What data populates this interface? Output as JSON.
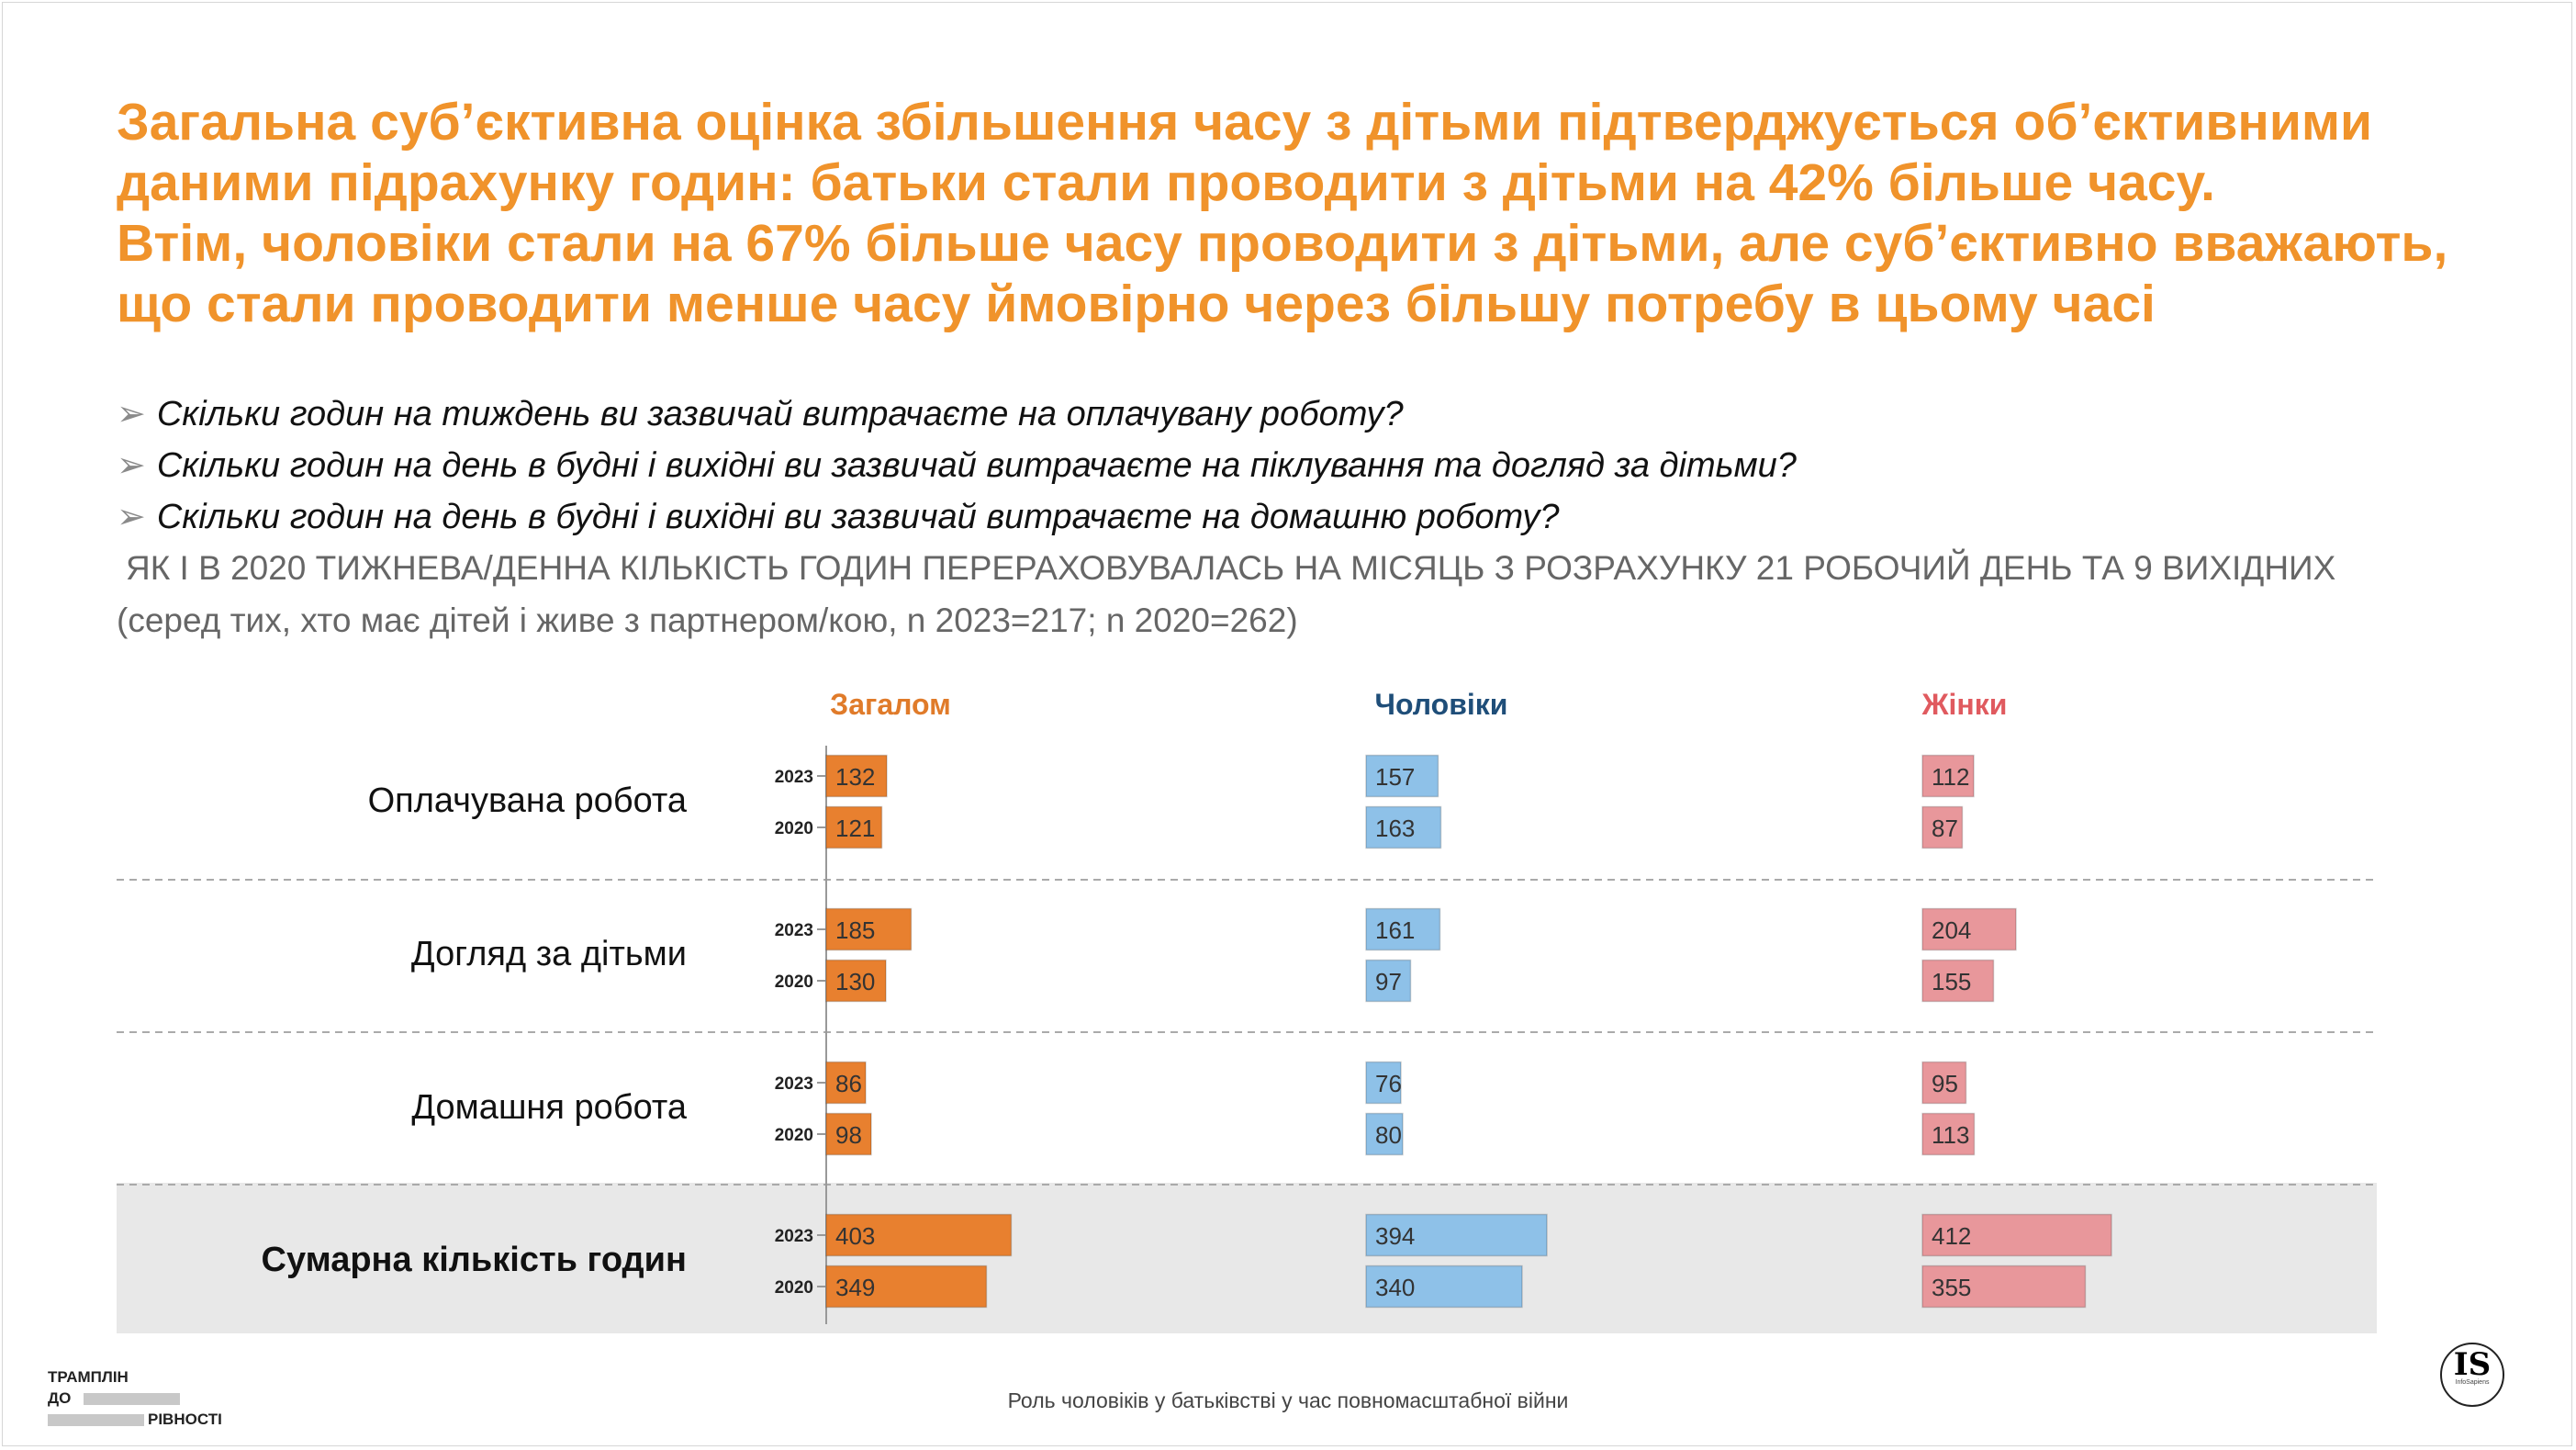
{
  "title_lines": [
    "Загальна суб’єктивна оцінка збільшення часу з дітьми підтверджується об’єктивними",
    "даними підрахунку годин: батьки стали проводити з дітьми на 42% більше часу.",
    "Втім, чоловіки стали на 67% більше часу проводити з дітьми, але суб’єктивно вважають,",
    "що стали проводити менше часу ймовірно через більшу потребу в цьому часі"
  ],
  "questions": [
    "Скільки годин на тиждень ви зазвичай витрачаєте на оплачувану роботу?",
    "Скільки годин на день в будні і вихідні ви зазвичай витрачаєте на піклування та догляд за дітьми?",
    "Скільки годин на день в будні і вихідні ви зазвичай витрачаєте на домашню роботу?"
  ],
  "note_line1": "ЯК І В 2020 ТИЖНЕВА/ДЕННА КІЛЬКІСТЬ ГОДИН ПЕРЕРАХОВУВАЛАСЬ НА МІСЯЦЬ З РОЗРАХУНКУ 21 РОБОЧИЙ ДЕНЬ ТА 9 ВИХІДНИХ",
  "note_line2": "(серед тих, хто має дітей і живе з партнером/кою, n 2023=217; n 2020=262)",
  "colors": {
    "title": "#f0932b",
    "overall": "#e8802f",
    "men": "#8ec1e8",
    "women": "#e8979b",
    "overall_header": "#e07b2a",
    "men_header": "#1f4e79",
    "women_header": "#e05a5f",
    "highlight_bg": "#e8e8e8"
  },
  "chart_data": {
    "type": "bar",
    "orientation": "horizontal",
    "groups": [
      "Загалом",
      "Чоловіки",
      "Жінки"
    ],
    "categories": [
      "Оплачувана робота",
      "Догляд за дітьми",
      "Домашня робота",
      "Сумарна кількість годин"
    ],
    "years": [
      "2023",
      "2020"
    ],
    "series": [
      {
        "name": "Загалом",
        "values_2023": [
          132,
          185,
          86,
          403
        ],
        "values_2020": [
          121,
          130,
          98,
          349
        ]
      },
      {
        "name": "Чоловіки",
        "values_2023": [
          157,
          161,
          76,
          394
        ],
        "values_2020": [
          163,
          97,
          80,
          340
        ]
      },
      {
        "name": "Жінки",
        "values_2023": [
          112,
          204,
          95,
          412
        ],
        "values_2020": [
          87,
          155,
          113,
          355
        ]
      }
    ],
    "highlighted_category": "Сумарна кількість годин"
  },
  "footer": {
    "center_text": "Роль чоловіків у батьківстві у час повномасштабної війни",
    "logo_left_line1": "ТРАМПЛІН",
    "logo_left_line2": "ДО",
    "logo_left_line3": "РІВНОСТІ",
    "logo_right": "IS",
    "logo_right_sub": "InfoSapiens"
  }
}
